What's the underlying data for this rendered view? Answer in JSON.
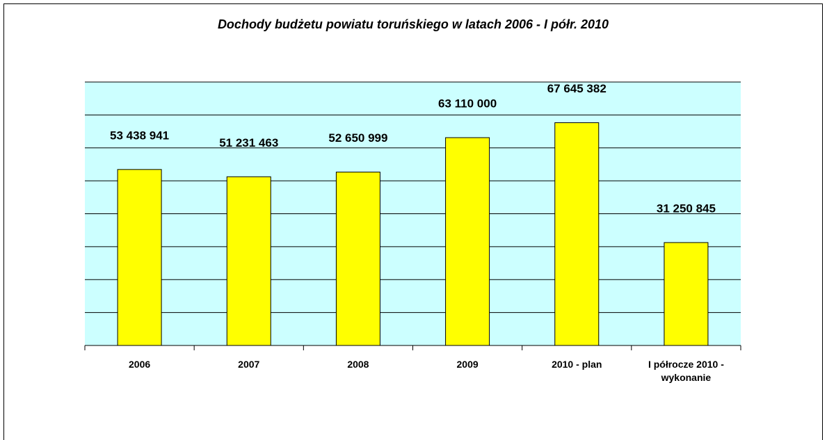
{
  "chart_data": {
    "type": "bar",
    "title": "Dochody budżetu powiatu toruńskiego w latach 2006 - I półr. 2010",
    "categories": [
      "2006",
      "2007",
      "2008",
      "2009",
      "2010 - plan",
      "I półrocze 2010 - wykonanie"
    ],
    "values": [
      53438941,
      51231463,
      52650999,
      63110000,
      67645382,
      31250845
    ],
    "value_labels": [
      "53 438 941",
      "51 231 463",
      "52 650 999",
      "63 110 000",
      "67 645 382",
      "31 250 845"
    ],
    "color": "#ffff00",
    "ylim": [
      0,
      80000000
    ],
    "yticks": [
      0,
      10000000,
      20000000,
      30000000,
      40000000,
      50000000,
      60000000,
      70000000,
      80000000
    ],
    "grid": true
  }
}
